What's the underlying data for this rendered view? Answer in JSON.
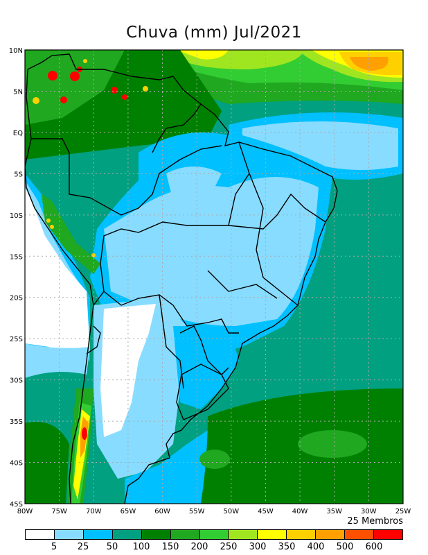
{
  "title": "Chuva (mm) Jul/2021",
  "members": "25 Membros",
  "lon_labels": [
    "80W",
    "75W",
    "70W",
    "65W",
    "60W",
    "55W",
    "50W",
    "45W",
    "40W",
    "35W",
    "30W",
    "25W"
  ],
  "lat_labels": [
    "10N",
    "5N",
    "EQ",
    "5S",
    "10S",
    "15S",
    "20S",
    "25S",
    "30S",
    "35S",
    "40S",
    "45S"
  ],
  "colorbar": {
    "colors": [
      "#ffffff",
      "#88dcff",
      "#00c0ff",
      "#00a080",
      "#008000",
      "#20a820",
      "#32cd32",
      "#a0e620",
      "#ffff00",
      "#ffd000",
      "#ffa000",
      "#ff5000",
      "#ff0000"
    ],
    "labels": [
      "5",
      "25",
      "50",
      "100",
      "150",
      "200",
      "250",
      "300",
      "350",
      "400",
      "500",
      "600"
    ]
  }
}
